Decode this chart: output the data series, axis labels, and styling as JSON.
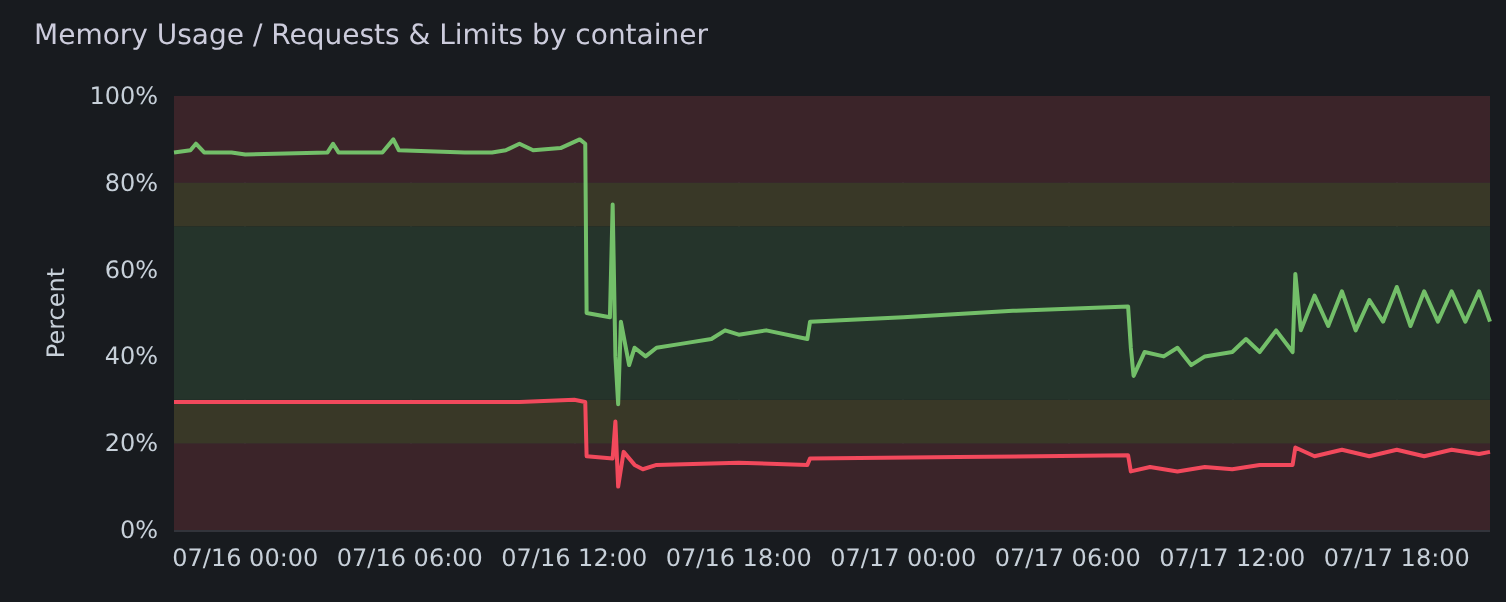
{
  "chart_data": {
    "type": "line",
    "title": "Memory Usage / Requests & Limits by container",
    "ylabel": "Percent",
    "xlim": [
      "--07-15T21:24",
      "--07-17T21:24"
    ],
    "xticks": [
      {
        "value": "--07-16T00:00",
        "label": "07/16 00:00"
      },
      {
        "value": "--07-16T06:00",
        "label": "07/16 06:00"
      },
      {
        "value": "--07-16T12:00",
        "label": "07/16 12:00"
      },
      {
        "value": "--07-16T18:00",
        "label": "07/16 18:00"
      },
      {
        "value": "--07-17T00:00",
        "label": "07/17 00:00"
      },
      {
        "value": "--07-17T06:00",
        "label": "07/17 06:00"
      },
      {
        "value": "--07-17T12:00",
        "label": "07/17 12:00"
      },
      {
        "value": "--07-17T18:00",
        "label": "07/17 18:00"
      }
    ],
    "ylim": [
      0,
      100
    ],
    "yticks": [
      {
        "value": 0,
        "label": "0%"
      },
      {
        "value": 20,
        "label": "20%"
      },
      {
        "value": 40,
        "label": "40%"
      },
      {
        "value": 60,
        "label": "60%"
      },
      {
        "value": 80,
        "label": "80%"
      },
      {
        "value": 100,
        "label": "100%"
      }
    ],
    "grid": true,
    "marker": "none",
    "line_style": "solid",
    "bands": [
      {
        "axis": "y",
        "from": 0,
        "to": 20,
        "color": "#3b2429"
      },
      {
        "axis": "y",
        "from": 20,
        "to": 30,
        "color": "#393827"
      },
      {
        "axis": "y",
        "from": 30,
        "to": 70,
        "color": "#25342b"
      },
      {
        "axis": "y",
        "from": 70,
        "to": 80,
        "color": "#393827"
      },
      {
        "axis": "y",
        "from": 80,
        "to": 100,
        "color": "#3b2429"
      }
    ],
    "series": [
      {
        "color": "#73bf69",
        "x": [
          "--07-15T21:24",
          "--07-15T22:00",
          "--07-15T22:12",
          "--07-15T22:30",
          "--07-15T23:30",
          "--07-16T00:00",
          "--07-16T03:00",
          "--07-16T03:12",
          "--07-16T03:24",
          "--07-16T05:00",
          "--07-16T05:24",
          "--07-16T05:36",
          "--07-16T08:00",
          "--07-16T09:00",
          "--07-16T09:30",
          "--07-16T10:00",
          "--07-16T10:30",
          "--07-16T11:30",
          "--07-16T12:12",
          "--07-16T12:24",
          "--07-16T12:27",
          "--07-16T13:18",
          "--07-16T13:24",
          "--07-16T13:30",
          "--07-16T13:36",
          "--07-16T13:42",
          "--07-16T14:00",
          "--07-16T14:12",
          "--07-16T14:36",
          "--07-16T15:00",
          "--07-16T16:00",
          "--07-16T17:00",
          "--07-16T17:30",
          "--07-16T18:00",
          "--07-16T19:00",
          "--07-16T20:30",
          "--07-16T20:36",
          "--07-17T00:00",
          "--07-17T04:00",
          "--07-17T08:12",
          "--07-17T08:18",
          "--07-17T08:24",
          "--07-17T08:48",
          "--07-17T09:30",
          "--07-17T10:00",
          "--07-17T10:30",
          "--07-17T11:00",
          "--07-17T12:00",
          "--07-17T12:30",
          "--07-17T13:00",
          "--07-17T13:36",
          "--07-17T14:12",
          "--07-17T14:18",
          "--07-17T14:30",
          "--07-17T15:00",
          "--07-17T15:30",
          "--07-17T16:00",
          "--07-17T16:30",
          "--07-17T17:00",
          "--07-17T17:30",
          "--07-17T18:00",
          "--07-17T18:30",
          "--07-17T19:00",
          "--07-17T19:30",
          "--07-17T20:00",
          "--07-17T20:30",
          "--07-17T21:00",
          "--07-17T21:24"
        ],
        "values": [
          87,
          87.5,
          89,
          87,
          87,
          86.5,
          87,
          89,
          87,
          87,
          90,
          87.5,
          87,
          87,
          87.5,
          89,
          87.5,
          88,
          90,
          89,
          50,
          49,
          75,
          40,
          29,
          48,
          38,
          42,
          40,
          42,
          43,
          44,
          46,
          45,
          46,
          44,
          48,
          49,
          50.5,
          51.5,
          42,
          35.5,
          41,
          40,
          42,
          38,
          40,
          41,
          44,
          41,
          46,
          41,
          59,
          46,
          54,
          47,
          55,
          46,
          53,
          48,
          56,
          47,
          55,
          48,
          55,
          48,
          55,
          48
        ]
      },
      {
        "color": "#f2495c",
        "x": [
          "--07-15T21:24",
          "--07-16T00:00",
          "--07-16T05:00",
          "--07-16T10:00",
          "--07-16T12:00",
          "--07-16T12:24",
          "--07-16T12:27",
          "--07-16T13:24",
          "--07-16T13:30",
          "--07-16T13:36",
          "--07-16T13:48",
          "--07-16T14:12",
          "--07-16T14:30",
          "--07-16T15:00",
          "--07-16T18:00",
          "--07-16T20:30",
          "--07-16T20:36",
          "--07-17T02:00",
          "--07-17T08:12",
          "--07-17T08:18",
          "--07-17T09:00",
          "--07-17T10:00",
          "--07-17T11:00",
          "--07-17T12:00",
          "--07-17T13:00",
          "--07-17T14:12",
          "--07-17T14:18",
          "--07-17T15:00",
          "--07-17T16:00",
          "--07-17T17:00",
          "--07-17T18:00",
          "--07-17T19:00",
          "--07-17T20:00",
          "--07-17T21:00",
          "--07-17T21:24"
        ],
        "values": [
          29.5,
          29.5,
          29.5,
          29.5,
          30,
          29.5,
          17,
          16.5,
          25,
          10,
          18,
          15,
          14,
          15,
          15.5,
          15,
          16.5,
          16.8,
          17.2,
          13.5,
          14.5,
          13.5,
          14.5,
          14,
          15,
          15,
          19,
          17,
          18.5,
          17,
          18.5,
          17,
          18.5,
          17.5,
          18
        ]
      }
    ]
  }
}
